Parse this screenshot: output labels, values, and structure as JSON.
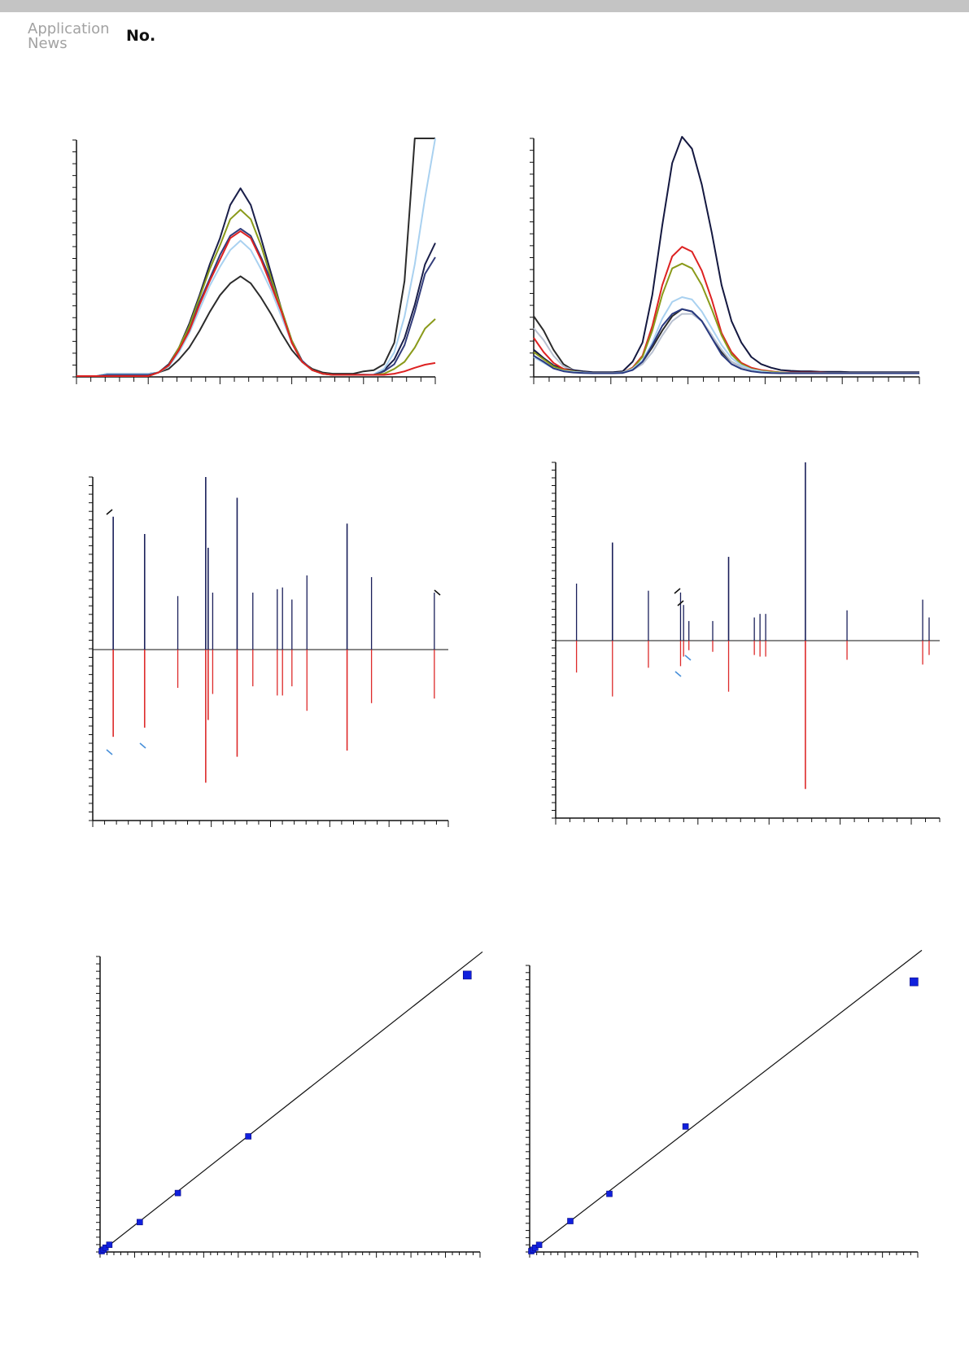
{
  "header": {
    "brand_line1": "Application",
    "brand_line2": "News",
    "doc_no_label": "No."
  },
  "colors": {
    "axis": "#111111",
    "reference_line": "#111111",
    "calibration_point": "#1020dd",
    "top_spectrum": "#1a1f5a",
    "bottom_spectrum": "#dd2a2a",
    "label_mark_dark": "#111111",
    "label_mark_blue": "#4a90d9"
  },
  "chart_data": [
    {
      "type": "line",
      "panel": "chromatogram-left",
      "title": "",
      "xlabel": "",
      "ylabel": "",
      "x": [
        0,
        1,
        2,
        3,
        4,
        5,
        6,
        7,
        8,
        9,
        10,
        11,
        12,
        13,
        14,
        15,
        16,
        17,
        18,
        19,
        20,
        21,
        22,
        23,
        24,
        25,
        26,
        27,
        28,
        29,
        30,
        31,
        32,
        33,
        34,
        35
      ],
      "ylim": [
        0,
        100
      ],
      "grid": false,
      "series": [
        {
          "color": "#1a1f4a",
          "values": [
            0,
            0,
            0,
            0,
            0,
            0,
            0,
            0,
            1.5,
            5,
            12,
            22,
            34,
            47,
            58,
            72,
            79,
            72,
            58,
            43,
            28,
            14,
            6,
            2.8,
            1.2,
            0.8,
            0.6,
            0.6,
            0.6,
            0.6,
            2.5,
            7,
            16,
            30,
            47,
            56
          ]
        },
        {
          "color": "#2b2b2b",
          "values": [
            0,
            0,
            0,
            1,
            1,
            1,
            1,
            1,
            1.5,
            3,
            7,
            12,
            19,
            27,
            34,
            39,
            42,
            39,
            33,
            26,
            18,
            11,
            6,
            3,
            1.5,
            1,
            1,
            1,
            2,
            2.5,
            5,
            14,
            40,
            100,
            100,
            100
          ]
        },
        {
          "color": "#a9d1f0",
          "values": [
            0,
            0,
            0,
            1,
            1,
            1,
            1,
            1,
            1.5,
            4,
            10,
            18,
            28,
            38,
            46,
            53,
            57,
            53,
            45,
            36,
            25,
            14,
            6,
            2.5,
            1,
            0.5,
            0.5,
            0.5,
            0.5,
            0.8,
            3,
            10,
            25,
            47,
            75,
            100
          ]
        },
        {
          "color": "#323c7a",
          "values": [
            0,
            0,
            0,
            0.5,
            0.5,
            0.5,
            0.5,
            0.5,
            1.5,
            4.5,
            11,
            20,
            31,
            41,
            51,
            59,
            62,
            59,
            50,
            40,
            28,
            15,
            6.5,
            2.5,
            1,
            0.5,
            0.5,
            0.5,
            0.5,
            0.5,
            2,
            5,
            13,
            27,
            43,
            50
          ]
        },
        {
          "color": "#8a9a1a",
          "values": [
            0,
            0,
            0,
            0,
            0,
            0,
            0,
            0,
            1.5,
            4.5,
            12,
            21,
            33,
            45,
            55,
            66,
            70,
            66,
            55,
            41,
            28,
            15,
            6,
            2.5,
            1,
            0.5,
            0.5,
            0.5,
            0.5,
            0.5,
            1,
            3,
            6,
            12,
            20,
            24
          ]
        },
        {
          "color": "#dd2222",
          "values": [
            0,
            0,
            0,
            0,
            0,
            0,
            0,
            0,
            1.5,
            4.5,
            11,
            19,
            30,
            40,
            49,
            58,
            61,
            58,
            49,
            38,
            27,
            14,
            6,
            2.5,
            1,
            0.5,
            0.5,
            0.5,
            0.5,
            0.5,
            0.5,
            1,
            2,
            3.5,
            4.8,
            5.5
          ]
        }
      ]
    },
    {
      "type": "line",
      "panel": "chromatogram-right",
      "title": "",
      "xlabel": "",
      "ylabel": "",
      "x": [
        0,
        1,
        2,
        3,
        4,
        5,
        6,
        7,
        8,
        9,
        10,
        11,
        12,
        13,
        14,
        15,
        16,
        17,
        18,
        19,
        20,
        21,
        22,
        23,
        24,
        25,
        26,
        27,
        28,
        29,
        30,
        31,
        32,
        33,
        34,
        35,
        36,
        37,
        38,
        39
      ],
      "ylim": [
        0,
        100
      ],
      "grid": false,
      "series": [
        {
          "color": "#2b2b2b",
          "values": [
            25,
            19,
            11,
            5,
            2.5,
            1.5,
            1.3,
            1.3,
            1.3,
            1.5,
            2.8,
            6,
            12,
            19,
            25,
            28,
            27,
            23,
            17,
            10,
            6,
            3.8,
            2.8,
            2,
            1.8,
            1.5,
            1.5,
            1.5,
            1.5,
            1.5,
            1.5,
            1.5,
            1.5,
            1.5,
            1.5,
            1.5,
            1.5,
            1.5,
            1.5,
            1.5
          ]
        },
        {
          "color": "#b8c0d0",
          "values": [
            20,
            15,
            8.5,
            4,
            2.5,
            1.5,
            1.3,
            1.3,
            1.3,
            1.5,
            2.5,
            5,
            10,
            17,
            23,
            26,
            26,
            23,
            17,
            11,
            6,
            3.8,
            2.8,
            2,
            1.8,
            1.5,
            1.5,
            1.5,
            1.5,
            1.5,
            1.5,
            1.5,
            1.5,
            1.5,
            1.5,
            1.5,
            1.5,
            1.5,
            1.5,
            1.5
          ]
        },
        {
          "color": "#141840",
          "values": [
            11,
            7.5,
            4.5,
            3,
            2.5,
            2,
            1.6,
            1.6,
            1.6,
            2,
            6,
            14,
            34,
            63,
            89,
            100,
            95,
            80,
            60,
            38,
            23,
            14,
            8,
            5,
            3.5,
            2.5,
            2.2,
            2,
            2,
            1.8,
            1.8,
            1.8,
            1.6,
            1.6,
            1.6,
            1.6,
            1.6,
            1.6,
            1.6,
            1.6
          ]
        },
        {
          "color": "#dd2222",
          "values": [
            16,
            10,
            5.5,
            3,
            2,
            1.5,
            1.3,
            1.3,
            1.3,
            1.5,
            3.5,
            8.5,
            21,
            38,
            50,
            54,
            52,
            44,
            32,
            18,
            10,
            5.5,
            3.5,
            2.5,
            2,
            1.5,
            1.5,
            1.5,
            1.5,
            1.5,
            1.3,
            1.3,
            1.3,
            1.3,
            1.3,
            1.3,
            1.3,
            1.3,
            1.3,
            1.3
          ]
        },
        {
          "color": "#8a9a1a",
          "values": [
            10,
            7,
            4,
            2.5,
            2,
            1.5,
            1.3,
            1.3,
            1.3,
            1.5,
            3.2,
            8,
            19,
            34,
            45,
            47,
            45,
            38,
            28,
            17,
            9,
            5,
            3,
            2.2,
            1.8,
            1.5,
            1.3,
            1.3,
            1.3,
            1.3,
            1.3,
            1.3,
            1.3,
            1.3,
            1.3,
            1.3,
            1.3,
            1.3,
            1.3,
            1.3
          ]
        },
        {
          "color": "#a9d1f0",
          "values": [
            8,
            5.5,
            3.2,
            2.2,
            1.8,
            1.5,
            1.3,
            1.3,
            1.3,
            1.5,
            3,
            6.5,
            14,
            24,
            31,
            33,
            32,
            27,
            20,
            13,
            7.5,
            4.5,
            2.8,
            2,
            1.5,
            1.3,
            1.3,
            1.3,
            1.3,
            1.3,
            1.3,
            1.3,
            1.3,
            1.3,
            1.3,
            1.3,
            1.3,
            1.3,
            1.3,
            1.3
          ]
        },
        {
          "color": "#2a3a80",
          "values": [
            8.5,
            6,
            3.2,
            2,
            1.5,
            1.3,
            1.2,
            1.2,
            1.2,
            1.3,
            2.5,
            6,
            13,
            21,
            26,
            28,
            27,
            23,
            16,
            9,
            5,
            3,
            2,
            1.5,
            1.3,
            1.2,
            1.2,
            1.2,
            1.2,
            1.2,
            1.2,
            1.2,
            1.2,
            1.2,
            1.2,
            1.2,
            1.2,
            1.2,
            1.2,
            1.2
          ]
        }
      ]
    },
    {
      "type": "bar",
      "panel": "mirror-spectrum-left",
      "title": "",
      "xlabel": "",
      "ylabel": "",
      "xlim": [
        0,
        100
      ],
      "ylim": [
        -100,
        100
      ],
      "grid": false,
      "series": [
        {
          "name": "",
          "color": "#1a1f5a",
          "x": [
            4,
            13,
            22.5,
            30.5,
            31.2,
            32.5,
            39.5,
            44,
            51,
            52.5,
            55.2,
            59.5,
            71,
            78,
            96
          ],
          "values": [
            77,
            67,
            31,
            100,
            59,
            33,
            88,
            33,
            35,
            36,
            29,
            43,
            73,
            42,
            33
          ]
        },
        {
          "name": "",
          "color": "#dd2a2a",
          "x": [
            4,
            13,
            22.5,
            30.5,
            31.2,
            32.5,
            39.5,
            44,
            51,
            52.5,
            55.2,
            59.5,
            71,
            78,
            96
          ],
          "values": [
            -57,
            -51,
            -25,
            -87,
            -46,
            -29,
            -70,
            -24,
            -30,
            -30,
            -24,
            -40,
            -66,
            -35,
            -32
          ]
        }
      ]
    },
    {
      "type": "bar",
      "panel": "mirror-spectrum-right",
      "title": "",
      "xlabel": "",
      "ylabel": "",
      "xlim": [
        0,
        100
      ],
      "ylim": [
        -100,
        100
      ],
      "grid": false,
      "series": [
        {
          "name": "",
          "color": "#1a1f5a",
          "x": [
            4,
            13.5,
            23,
            31.5,
            32.3,
            33.7,
            40,
            44.2,
            51,
            52.5,
            54,
            64.5,
            75.5,
            95.5,
            97.2
          ],
          "values": [
            32,
            55,
            28,
            27,
            20,
            11,
            11,
            47,
            13,
            15,
            15,
            100,
            17,
            23,
            13
          ]
        },
        {
          "name": "",
          "color": "#dd2a2a",
          "x": [
            4,
            13.5,
            23,
            31.5,
            32.3,
            33.7,
            40,
            44.2,
            51,
            52.5,
            54,
            64.5,
            75.5,
            95.5,
            97.2
          ],
          "values": [
            -20,
            -35,
            -17,
            -16,
            -10,
            -6,
            -7,
            -32,
            -9,
            -10,
            -10,
            -93,
            -12,
            -15,
            -9
          ]
        }
      ]
    },
    {
      "type": "scatter",
      "panel": "calibration-left",
      "title": "",
      "xlabel": "",
      "ylabel": "",
      "xlim": [
        0,
        100
      ],
      "ylim": [
        0,
        100
      ],
      "grid": false,
      "fit_line": {
        "x": [
          0,
          100
        ],
        "y": [
          0,
          103
        ]
      },
      "points": {
        "x": [
          0,
          0.5,
          1,
          2,
          10,
          20,
          38.5,
          96
        ],
        "y": [
          0,
          0.5,
          1.2,
          2.2,
          10,
          20,
          39.5,
          95
        ]
      }
    },
    {
      "type": "scatter",
      "panel": "calibration-right",
      "title": "",
      "xlabel": "",
      "ylabel": "",
      "xlim": [
        0,
        100
      ],
      "ylim": [
        0,
        100
      ],
      "grid": false,
      "fit_line": {
        "x": [
          0,
          100
        ],
        "y": [
          0,
          105
        ]
      },
      "points": {
        "x": [
          0,
          0.5,
          1,
          2,
          10,
          20,
          39.5,
          98
        ],
        "y": [
          0,
          0.5,
          1.2,
          2.2,
          10.5,
          20,
          43.5,
          94
        ]
      }
    }
  ]
}
